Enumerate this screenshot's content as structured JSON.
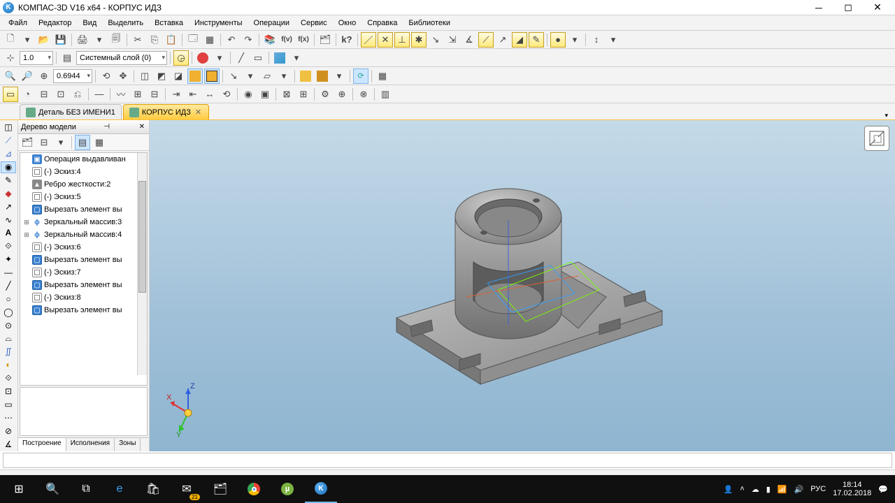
{
  "title": "КОМПАС-3D V16  x64 - КОРПУС ИДЗ",
  "menus": [
    "Файл",
    "Редактор",
    "Вид",
    "Выделить",
    "Вставка",
    "Инструменты",
    "Операции",
    "Сервис",
    "Окно",
    "Справка",
    "Библиотеки"
  ],
  "toolbar2": {
    "snap_value": "1.0",
    "layer_label": "Системный слой (0)"
  },
  "toolbar3": {
    "zoom_value": "0.6944"
  },
  "tabs": [
    {
      "label": "Деталь БЕЗ ИМЕНИ1",
      "active": false
    },
    {
      "label": "КОРПУС ИДЗ",
      "active": true
    }
  ],
  "tree": {
    "title": "Дерево модели",
    "items": [
      {
        "icon": "extrude",
        "label": "Операция выдавливан"
      },
      {
        "icon": "sketch",
        "label": "(-) Эскиз:4"
      },
      {
        "icon": "rib",
        "label": "Ребро жесткости:2"
      },
      {
        "icon": "sketch",
        "label": "(-) Эскиз:5"
      },
      {
        "icon": "cut",
        "label": "Вырезать элемент вы"
      },
      {
        "icon": "mirror",
        "label": "Зеркальный массив:3",
        "expandable": true
      },
      {
        "icon": "mirror",
        "label": "Зеркальный массив:4",
        "expandable": true
      },
      {
        "icon": "sketch",
        "label": "(-) Эскиз:6"
      },
      {
        "icon": "cut",
        "label": "Вырезать элемент вы"
      },
      {
        "icon": "sketch",
        "label": "(-) Эскиз:7"
      },
      {
        "icon": "cut",
        "label": "Вырезать элемент вы"
      },
      {
        "icon": "sketch",
        "label": "(-) Эскиз:8"
      },
      {
        "icon": "cut",
        "label": "Вырезать элемент вы"
      }
    ],
    "bottom_tabs": [
      "Построение",
      "Исполнения",
      "Зоны"
    ]
  },
  "axes_labels": {
    "x": "X",
    "y": "Y",
    "z": "Z"
  },
  "colors": {
    "viewport_top": "#c5dae8",
    "viewport_bottom": "#8fb5d0",
    "model_body": "#a8a8a8",
    "model_shadow": "#6f6f6f",
    "axis_x": "#e03030",
    "axis_y": "#30c030",
    "axis_z": "#3060e0",
    "active_tab_bg": "#ffcc40"
  },
  "tray": {
    "lang": "РУС",
    "time": "18:14",
    "date": "17.02.2018",
    "mail_badge": "21"
  }
}
